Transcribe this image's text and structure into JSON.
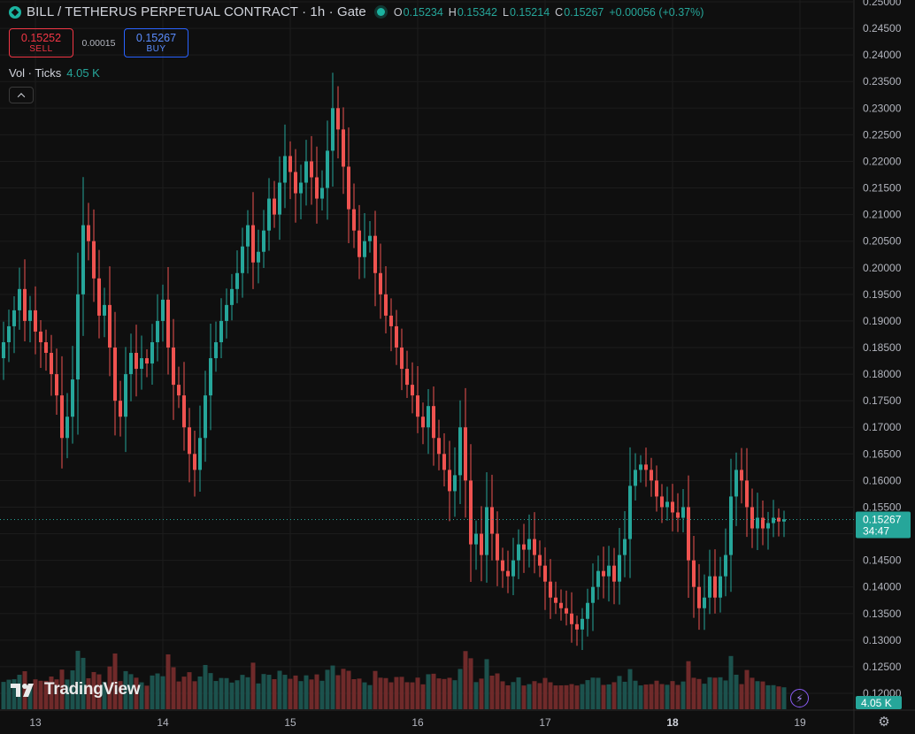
{
  "header": {
    "symbol_icon": "diamond-icon",
    "title": "BILL / TETHERUS PERPETUAL CONTRACT · 1h · Gate",
    "open_label": "O",
    "open": "0.15234",
    "high_label": "H",
    "high": "0.15342",
    "low_label": "L",
    "low": "0.15214",
    "close_label": "C",
    "close": "0.15267",
    "change": "+0.00056 (+0.37%)"
  },
  "trade": {
    "sell_price": "0.15252",
    "sell_label": "SELL",
    "spread": "0.00015",
    "buy_price": "0.15267",
    "buy_label": "BUY"
  },
  "volume_legend": {
    "label": "Vol · Ticks",
    "value": "4.05 K"
  },
  "price_scale": {
    "last_price": "0.15267",
    "countdown": "34:47",
    "volume_badge": "4.05 K"
  },
  "branding": {
    "logo_text": "TradingView"
  },
  "icons": [
    "diamond-icon",
    "chevron-up-icon",
    "tradingview-logo-icon",
    "lightning-icon",
    "settings-gear-icon"
  ],
  "colors": {
    "up": "#26a69a",
    "down": "#ef5350",
    "background": "#0f0f0f",
    "buy": "#2962ff",
    "sell": "#f23645"
  },
  "chart_data": {
    "type": "candlestick",
    "timeframe": "1h",
    "y_ticks": [
      "0.12000",
      "0.12500",
      "0.13000",
      "0.13500",
      "0.14000",
      "0.14500",
      "0.15000",
      "0.15500",
      "0.16000",
      "0.16500",
      "0.17000",
      "0.17500",
      "0.18000",
      "0.18500",
      "0.19000",
      "0.19500",
      "0.20000",
      "0.20500",
      "0.21000",
      "0.21500",
      "0.22000",
      "0.22500",
      "0.23000",
      "0.23500",
      "0.24000",
      "0.24500",
      "0.25000"
    ],
    "x_ticks": [
      {
        "label": "13",
        "index": 6
      },
      {
        "label": "14",
        "index": 30
      },
      {
        "label": "15",
        "index": 54
      },
      {
        "label": "16",
        "index": 78
      },
      {
        "label": "17",
        "index": 102
      },
      {
        "label": "18",
        "index": 126
      },
      {
        "label": "19",
        "index": 150
      }
    ],
    "ylim": [
      0.12,
      0.25
    ],
    "last_price": 0.15267,
    "candles_close": [
      0.186,
      0.189,
      0.192,
      0.196,
      0.19,
      0.192,
      0.188,
      0.186,
      0.184,
      0.18,
      0.176,
      0.168,
      0.172,
      0.179,
      0.195,
      0.208,
      0.205,
      0.198,
      0.191,
      0.193,
      0.185,
      0.175,
      0.172,
      0.18,
      0.184,
      0.181,
      0.183,
      0.182,
      0.186,
      0.19,
      0.194,
      0.185,
      0.178,
      0.176,
      0.17,
      0.165,
      0.162,
      0.168,
      0.176,
      0.183,
      0.186,
      0.19,
      0.193,
      0.196,
      0.199,
      0.204,
      0.208,
      0.201,
      0.203,
      0.207,
      0.213,
      0.21,
      0.216,
      0.221,
      0.218,
      0.214,
      0.216,
      0.22,
      0.217,
      0.213,
      0.215,
      0.222,
      0.23,
      0.226,
      0.219,
      0.211,
      0.207,
      0.202,
      0.205,
      0.206,
      0.199,
      0.195,
      0.191,
      0.189,
      0.185,
      0.181,
      0.178,
      0.176,
      0.172,
      0.17,
      0.174,
      0.168,
      0.165,
      0.162,
      0.158,
      0.161,
      0.17,
      0.16,
      0.148,
      0.15,
      0.146,
      0.155,
      0.15,
      0.145,
      0.143,
      0.142,
      0.145,
      0.148,
      0.147,
      0.149,
      0.146,
      0.144,
      0.141,
      0.138,
      0.137,
      0.136,
      0.135,
      0.133,
      0.132,
      0.134,
      0.137,
      0.14,
      0.143,
      0.142,
      0.144,
      0.141,
      0.146,
      0.149,
      0.159,
      0.162,
      0.163,
      0.162,
      0.16,
      0.157,
      0.155,
      0.156,
      0.154,
      0.153,
      0.155,
      0.145,
      0.14,
      0.136,
      0.138,
      0.142,
      0.138,
      0.142,
      0.146,
      0.157,
      0.162,
      0.16,
      0.155,
      0.151,
      0.153,
      0.151,
      0.152,
      0.153,
      0.1523,
      0.1527
    ],
    "volume_units": "ticks"
  }
}
